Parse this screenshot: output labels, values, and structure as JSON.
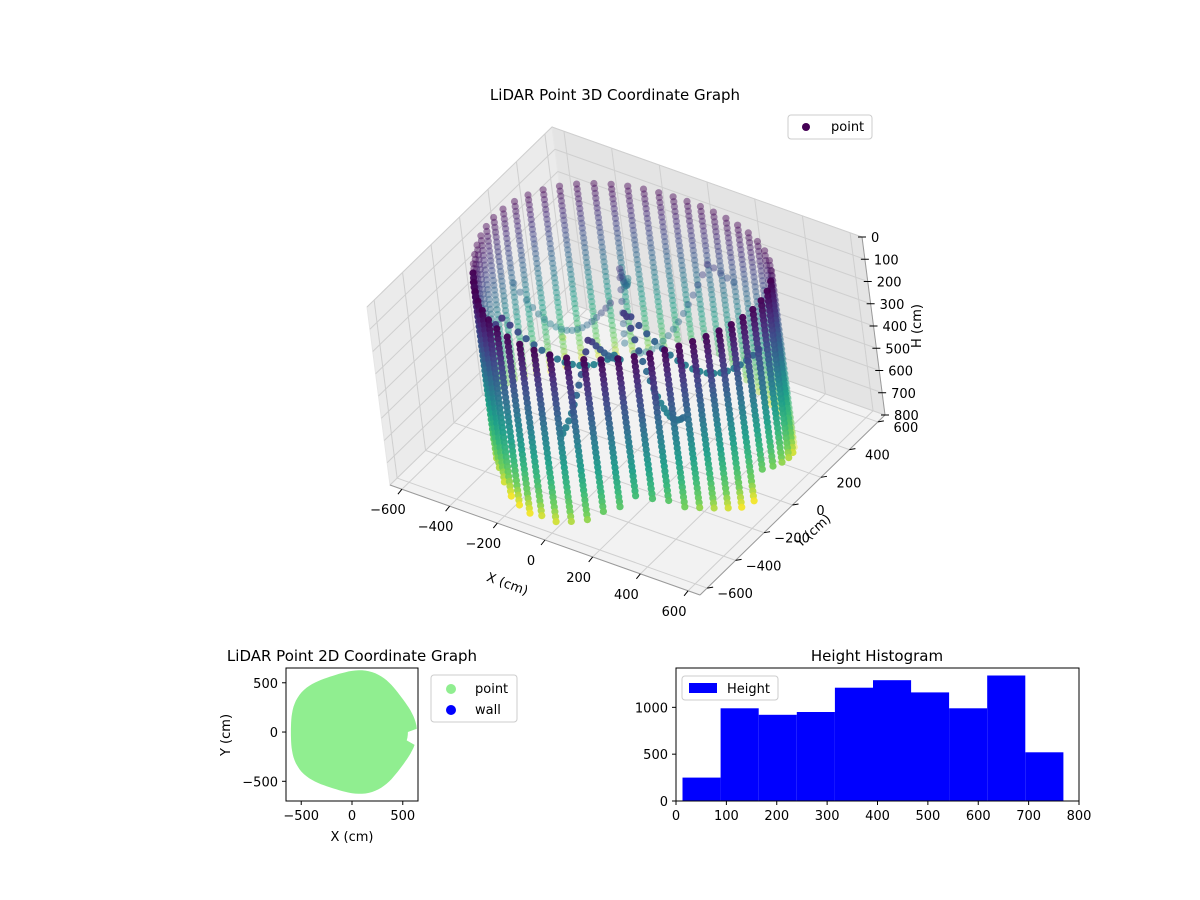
{
  "chart_data": [
    {
      "type": "scatter",
      "projection": "3d",
      "title": "LiDAR Point 3D Coordinate Graph",
      "xlabel": "X (cm)",
      "ylabel": "Y (cm)",
      "zlabel": "H (cm)",
      "xlim": [
        -650,
        650
      ],
      "ylim": [
        -650,
        650
      ],
      "zlim": [
        800,
        0
      ],
      "z_inverted": true,
      "xticks": [
        "−600",
        "−400",
        "−200",
        "0",
        "200",
        "400",
        "600"
      ],
      "yticks": [
        "−600",
        "−400",
        "−200",
        "0",
        "200",
        "400",
        "600"
      ],
      "zticks": [
        "0",
        "100",
        "200",
        "300",
        "400",
        "500",
        "600",
        "700",
        "800"
      ],
      "colormap": "viridis",
      "grid": true,
      "legend": {
        "placement": "upper-right",
        "entries": [
          {
            "label": "point",
            "color": "#440154"
          }
        ]
      },
      "series": [
        {
          "name": "point",
          "shape": "cylindrical wall of scan columns",
          "wall_radius_cm": 560,
          "columns": 56,
          "column_height_range_cm": [
            0,
            800
          ],
          "interior_rays": 7,
          "outlier_points": [
            {
              "x": -560,
              "y": 420,
              "h": 770
            }
          ]
        }
      ]
    },
    {
      "type": "scatter",
      "title": "LiDAR Point 2D Coordinate Graph",
      "xlabel": "X (cm)",
      "ylabel": "Y (cm)",
      "xlim": [
        -650,
        650
      ],
      "ylim": [
        -700,
        650
      ],
      "xticks": [
        "−500",
        "0",
        "500"
      ],
      "yticks": [
        "500",
        "0",
        "−500"
      ],
      "legend": {
        "placement": "outside-right",
        "entries": [
          {
            "label": "point",
            "color": "#90EE90"
          },
          {
            "label": "wall",
            "color": "#0000FF"
          }
        ]
      },
      "series": [
        {
          "name": "point",
          "color": "#90EE90",
          "shape": "filled disc",
          "radius_cm": 640,
          "notch_angle_deg": -5
        },
        {
          "name": "wall",
          "color": "#0000FF",
          "points": []
        }
      ]
    },
    {
      "type": "bar",
      "subtype": "histogram",
      "title": "Height Histogram",
      "xlim": [
        0,
        800
      ],
      "ylim": [
        0,
        1420
      ],
      "xticks": [
        "0",
        "100",
        "200",
        "300",
        "400",
        "500",
        "600",
        "700",
        "800"
      ],
      "yticks": [
        "0",
        "500",
        "1000"
      ],
      "legend": {
        "placement": "upper-left",
        "entries": [
          {
            "label": "Height",
            "color": "#0000FF"
          }
        ]
      },
      "series": [
        {
          "name": "Height",
          "color": "#0000FF",
          "bin_edges": [
            13,
            88.6,
            164.2,
            239.8,
            315.4,
            391,
            466.6,
            542.2,
            617.8,
            693.4,
            769
          ],
          "values": [
            250,
            990,
            920,
            950,
            1210,
            1290,
            1160,
            990,
            1340,
            520
          ]
        }
      ]
    }
  ]
}
